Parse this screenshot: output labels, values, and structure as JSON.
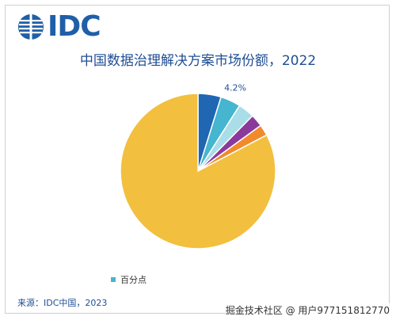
{
  "header": {
    "logo_text": "IDC"
  },
  "chart_data": {
    "type": "pie",
    "title": "中国数据治理解决方案市场份额，2022",
    "legend": {
      "label": "百分点",
      "position": "bottom-left"
    },
    "slices": [
      {
        "value": 4.8,
        "color": "#1f66b3"
      },
      {
        "value": 4.2,
        "color": "#46b5cf",
        "label": "4.2%"
      },
      {
        "value": 3.4,
        "color": "#a9dde8"
      },
      {
        "value": 2.6,
        "color": "#8b3a9c"
      },
      {
        "value": 2.3,
        "color": "#f08a2b"
      },
      {
        "value": 82.7,
        "color": "#f2bf3f"
      }
    ],
    "legend_color": "#46b5cf"
  },
  "footer": {
    "source": "来源：IDC中国，2023",
    "watermark": "掘金技术社区 @ 用户977151812770"
  }
}
